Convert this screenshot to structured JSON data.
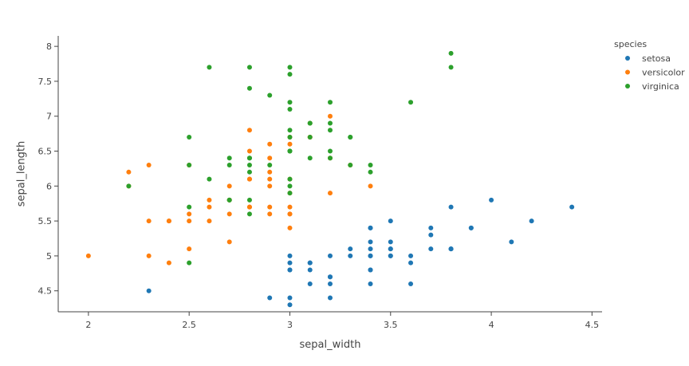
{
  "chart_data": {
    "type": "scatter",
    "xlabel": "sepal_width",
    "ylabel": "sepal_length",
    "xlim": [
      1.85,
      4.55
    ],
    "ylim": [
      4.2,
      8.15
    ],
    "xticks": [
      2,
      2.5,
      3,
      3.5,
      4,
      4.5
    ],
    "xtick_labels": [
      "2",
      "2.5",
      "3",
      "3.5",
      "4",
      "4.5"
    ],
    "yticks": [
      4.5,
      5,
      5.5,
      6,
      6.5,
      7,
      7.5,
      8
    ],
    "ytick_labels": [
      "4.5",
      "5",
      "5.5",
      "6",
      "6.5",
      "7",
      "7.5",
      "8"
    ],
    "grid": false,
    "legend": {
      "title": "species",
      "position": "top-right"
    },
    "series": [
      {
        "name": "setosa",
        "color": "#1f77b4",
        "points": [
          [
            3.5,
            5.1
          ],
          [
            3.0,
            4.9
          ],
          [
            3.2,
            4.7
          ],
          [
            3.1,
            4.6
          ],
          [
            3.6,
            5.0
          ],
          [
            3.9,
            5.4
          ],
          [
            3.4,
            4.6
          ],
          [
            3.4,
            5.0
          ],
          [
            2.9,
            4.4
          ],
          [
            3.1,
            4.9
          ],
          [
            3.7,
            5.4
          ],
          [
            3.4,
            4.8
          ],
          [
            3.0,
            4.8
          ],
          [
            3.0,
            4.3
          ],
          [
            4.0,
            5.8
          ],
          [
            4.4,
            5.7
          ],
          [
            3.9,
            5.4
          ],
          [
            3.5,
            5.1
          ],
          [
            3.8,
            5.7
          ],
          [
            3.8,
            5.1
          ],
          [
            3.4,
            5.4
          ],
          [
            3.7,
            5.1
          ],
          [
            3.6,
            4.6
          ],
          [
            3.3,
            5.1
          ],
          [
            3.4,
            4.8
          ],
          [
            3.0,
            5.0
          ],
          [
            3.4,
            5.0
          ],
          [
            3.5,
            5.2
          ],
          [
            3.4,
            5.2
          ],
          [
            3.2,
            4.7
          ],
          [
            3.1,
            4.8
          ],
          [
            3.4,
            5.4
          ],
          [
            4.1,
            5.2
          ],
          [
            4.2,
            5.5
          ],
          [
            3.1,
            4.9
          ],
          [
            3.2,
            5.0
          ],
          [
            3.5,
            5.5
          ],
          [
            3.6,
            4.9
          ],
          [
            3.0,
            4.4
          ],
          [
            3.4,
            5.1
          ],
          [
            3.5,
            5.0
          ],
          [
            2.3,
            4.5
          ],
          [
            3.2,
            4.4
          ],
          [
            3.5,
            5.0
          ],
          [
            3.8,
            5.1
          ],
          [
            3.0,
            4.8
          ],
          [
            3.8,
            5.1
          ],
          [
            3.2,
            4.6
          ],
          [
            3.7,
            5.3
          ],
          [
            3.3,
            5.0
          ]
        ]
      },
      {
        "name": "versicolor",
        "color": "#ff7f0e",
        "points": [
          [
            3.2,
            7.0
          ],
          [
            3.2,
            6.4
          ],
          [
            3.1,
            6.9
          ],
          [
            2.3,
            5.5
          ],
          [
            2.8,
            6.5
          ],
          [
            2.8,
            5.7
          ],
          [
            3.3,
            6.3
          ],
          [
            2.4,
            4.9
          ],
          [
            2.9,
            6.6
          ],
          [
            2.7,
            5.2
          ],
          [
            2.0,
            5.0
          ],
          [
            3.0,
            5.9
          ],
          [
            2.2,
            6.0
          ],
          [
            2.9,
            6.1
          ],
          [
            2.9,
            5.6
          ],
          [
            3.1,
            6.7
          ],
          [
            3.0,
            5.6
          ],
          [
            2.7,
            5.8
          ],
          [
            2.2,
            6.2
          ],
          [
            2.5,
            5.6
          ],
          [
            3.2,
            5.9
          ],
          [
            2.8,
            6.1
          ],
          [
            2.5,
            6.3
          ],
          [
            2.8,
            6.1
          ],
          [
            2.9,
            6.4
          ],
          [
            3.0,
            6.6
          ],
          [
            2.8,
            6.8
          ],
          [
            3.0,
            6.7
          ],
          [
            2.9,
            6.0
          ],
          [
            2.6,
            5.7
          ],
          [
            2.4,
            5.5
          ],
          [
            2.4,
            5.5
          ],
          [
            2.7,
            5.8
          ],
          [
            2.7,
            6.0
          ],
          [
            3.0,
            5.4
          ],
          [
            3.4,
            6.0
          ],
          [
            3.1,
            6.7
          ],
          [
            2.3,
            6.3
          ],
          [
            3.0,
            5.6
          ],
          [
            2.5,
            5.5
          ],
          [
            2.6,
            5.5
          ],
          [
            3.0,
            6.1
          ],
          [
            2.6,
            5.8
          ],
          [
            2.3,
            5.0
          ],
          [
            2.7,
            5.6
          ],
          [
            3.0,
            5.7
          ],
          [
            2.9,
            5.7
          ],
          [
            2.9,
            6.2
          ],
          [
            2.5,
            5.1
          ],
          [
            2.8,
            5.7
          ]
        ]
      },
      {
        "name": "virginica",
        "color": "#2ca02c",
        "points": [
          [
            3.3,
            6.3
          ],
          [
            2.7,
            5.8
          ],
          [
            3.0,
            7.1
          ],
          [
            2.9,
            6.3
          ],
          [
            3.0,
            6.5
          ],
          [
            3.0,
            7.6
          ],
          [
            2.5,
            4.9
          ],
          [
            2.9,
            7.3
          ],
          [
            2.5,
            6.7
          ],
          [
            3.6,
            7.2
          ],
          [
            3.2,
            6.5
          ],
          [
            2.7,
            6.4
          ],
          [
            3.0,
            6.8
          ],
          [
            2.5,
            5.7
          ],
          [
            2.8,
            5.8
          ],
          [
            3.2,
            6.4
          ],
          [
            3.0,
            6.5
          ],
          [
            3.8,
            7.7
          ],
          [
            2.6,
            7.7
          ],
          [
            2.2,
            6.0
          ],
          [
            3.2,
            6.9
          ],
          [
            2.8,
            5.6
          ],
          [
            2.8,
            7.7
          ],
          [
            2.7,
            6.3
          ],
          [
            3.3,
            6.7
          ],
          [
            3.2,
            7.2
          ],
          [
            2.8,
            6.2
          ],
          [
            3.0,
            6.1
          ],
          [
            2.8,
            6.4
          ],
          [
            3.0,
            7.2
          ],
          [
            2.8,
            7.4
          ],
          [
            3.8,
            7.9
          ],
          [
            2.8,
            6.4
          ],
          [
            2.8,
            6.3
          ],
          [
            2.6,
            6.1
          ],
          [
            3.0,
            7.7
          ],
          [
            3.4,
            6.3
          ],
          [
            3.1,
            6.4
          ],
          [
            3.0,
            6.0
          ],
          [
            3.1,
            6.9
          ],
          [
            3.1,
            6.7
          ],
          [
            3.1,
            6.9
          ],
          [
            2.7,
            5.8
          ],
          [
            3.2,
            6.8
          ],
          [
            3.3,
            6.7
          ],
          [
            3.0,
            6.7
          ],
          [
            2.5,
            6.3
          ],
          [
            3.0,
            6.5
          ],
          [
            3.4,
            6.2
          ],
          [
            3.0,
            5.9
          ]
        ]
      }
    ]
  }
}
